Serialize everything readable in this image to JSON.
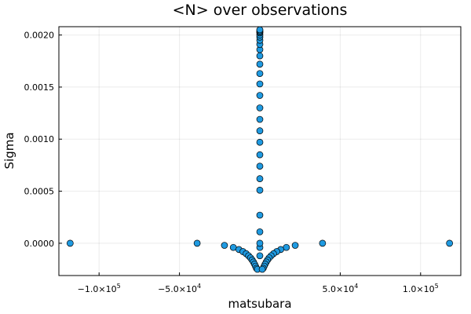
{
  "chart_data": {
    "type": "scatter",
    "title": "<N> over observations",
    "xlabel": "matsubara",
    "ylabel": "Sigma",
    "xlim": [
      -125000,
      125000
    ],
    "ylim": [
      -0.00031,
      0.00208
    ],
    "grid": true,
    "legend": "none",
    "color": "#1f9ae1",
    "x_ticks": [
      {
        "value": -100000,
        "base": "−1.0×10",
        "exp": "5"
      },
      {
        "value": -50000,
        "base": "−5.0×10",
        "exp": "4"
      },
      {
        "value": 50000,
        "base": "5.0×10",
        "exp": "4"
      },
      {
        "value": 100000,
        "base": "1.0×10",
        "exp": "5"
      }
    ],
    "y_ticks": [
      {
        "value": 0.0,
        "label": "0.0000"
      },
      {
        "value": 0.0005,
        "label": "0.0005"
      },
      {
        "value": 0.001,
        "label": "0.0010"
      },
      {
        "value": 0.0015,
        "label": "0.0015"
      },
      {
        "value": 0.002,
        "label": "0.0020"
      }
    ],
    "series": [
      {
        "points": [
          [
            -118000,
            0.0
          ],
          [
            118000,
            0.0
          ],
          [
            -39000,
            0.0
          ],
          [
            39000,
            0.0
          ],
          [
            -22000,
            -2e-05
          ],
          [
            22000,
            -2e-05
          ],
          [
            -16500,
            -4e-05
          ],
          [
            16500,
            -4e-05
          ],
          [
            -13000,
            -6e-05
          ],
          [
            13000,
            -6e-05
          ],
          [
            -10500,
            -8e-05
          ],
          [
            10500,
            -8e-05
          ],
          [
            -8500,
            -0.0001
          ],
          [
            8500,
            -0.0001
          ],
          [
            -7000,
            -0.00012
          ],
          [
            7000,
            -0.00012
          ],
          [
            -5800,
            -0.00014
          ],
          [
            5800,
            -0.00014
          ],
          [
            -4800,
            -0.00016
          ],
          [
            4800,
            -0.00016
          ],
          [
            -4000,
            -0.00018
          ],
          [
            4000,
            -0.00018
          ],
          [
            -3300,
            -0.0002
          ],
          [
            3300,
            -0.0002
          ],
          [
            -2700,
            -0.00022
          ],
          [
            2700,
            -0.00022
          ],
          [
            -2100,
            -0.00024
          ],
          [
            2100,
            -0.00024
          ],
          [
            -1500,
            -0.00025
          ],
          [
            1500,
            -0.00025
          ],
          [
            0,
            -0.00012
          ],
          [
            0,
            -4e-05
          ],
          [
            0,
            0.0
          ],
          [
            0,
            0.00011
          ],
          [
            0,
            0.00027
          ],
          [
            0,
            0.00051
          ],
          [
            0,
            0.00062
          ],
          [
            0,
            0.00074
          ],
          [
            0,
            0.00085
          ],
          [
            0,
            0.00097
          ],
          [
            0,
            0.00108
          ],
          [
            0,
            0.00119
          ],
          [
            0,
            0.0013
          ],
          [
            0,
            0.00142
          ],
          [
            0,
            0.00153
          ],
          [
            0,
            0.00163
          ],
          [
            0,
            0.00172
          ],
          [
            0,
            0.0018
          ],
          [
            0,
            0.00186
          ],
          [
            0,
            0.00191
          ],
          [
            0,
            0.00195
          ],
          [
            0,
            0.00198
          ],
          [
            0,
            0.002
          ],
          [
            0,
            0.00202
          ],
          [
            0,
            0.00203
          ],
          [
            0,
            0.00204
          ],
          [
            0,
            0.00205
          ]
        ]
      }
    ]
  }
}
